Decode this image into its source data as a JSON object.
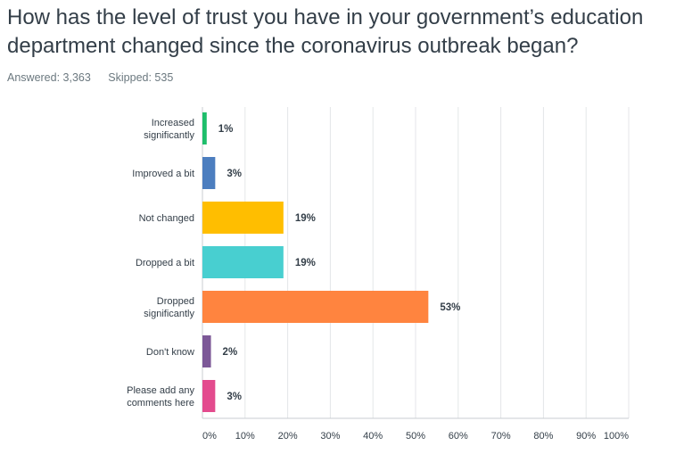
{
  "question": {
    "title": "How has the level of trust you have in your government’s education department changed since the coronavirus outbreak began?"
  },
  "stats": {
    "answered": "Answered: 3,363",
    "skipped": "Skipped: 535"
  },
  "chart_data": {
    "type": "bar",
    "orientation": "horizontal",
    "categories": [
      [
        "Increased",
        "significantly"
      ],
      [
        "Improved a bit"
      ],
      [
        "Not changed"
      ],
      [
        "Dropped a bit"
      ],
      [
        "Dropped",
        "significantly"
      ],
      [
        "Don't know"
      ],
      [
        "Please add any",
        "comments here"
      ]
    ],
    "values": [
      1,
      3,
      19,
      19,
      53,
      2,
      3
    ],
    "value_labels": [
      "1%",
      "3%",
      "19%",
      "19%",
      "53%",
      "2%",
      "3%"
    ],
    "colors": [
      "#1ebe6b",
      "#4c7ebf",
      "#ffbe00",
      "#48cfd0",
      "#ff843f",
      "#7c5897",
      "#e34b8e"
    ],
    "xlim": [
      0,
      100
    ],
    "x_ticks": [
      "0%",
      "10%",
      "20%",
      "30%",
      "40%",
      "50%",
      "60%",
      "70%",
      "80%",
      "90%",
      "100%"
    ],
    "grid": true,
    "grid_color": "#e4e6e8",
    "title": "",
    "xlabel": "",
    "ylabel": ""
  }
}
